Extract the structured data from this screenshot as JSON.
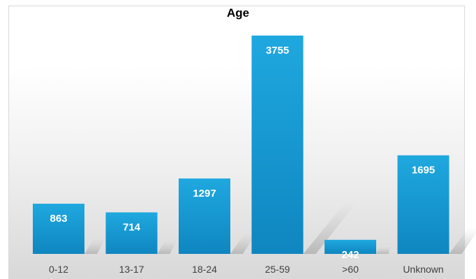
{
  "chart_data": {
    "type": "bar",
    "title": "Age",
    "xlabel": "",
    "ylabel": "",
    "categories": [
      "0-12",
      "13-17",
      "18-24",
      "25-59",
      ">60",
      "Unknown"
    ],
    "values": [
      863,
      714,
      1297,
      3755,
      242,
      1695
    ],
    "data_labels": [
      "863",
      "714",
      "1297",
      "3755",
      "242",
      "1695"
    ],
    "ylim": [
      0,
      4000
    ],
    "grid": false,
    "legend": "none",
    "bar_color": "#1a9fd6",
    "label_color": "#ffffff"
  }
}
